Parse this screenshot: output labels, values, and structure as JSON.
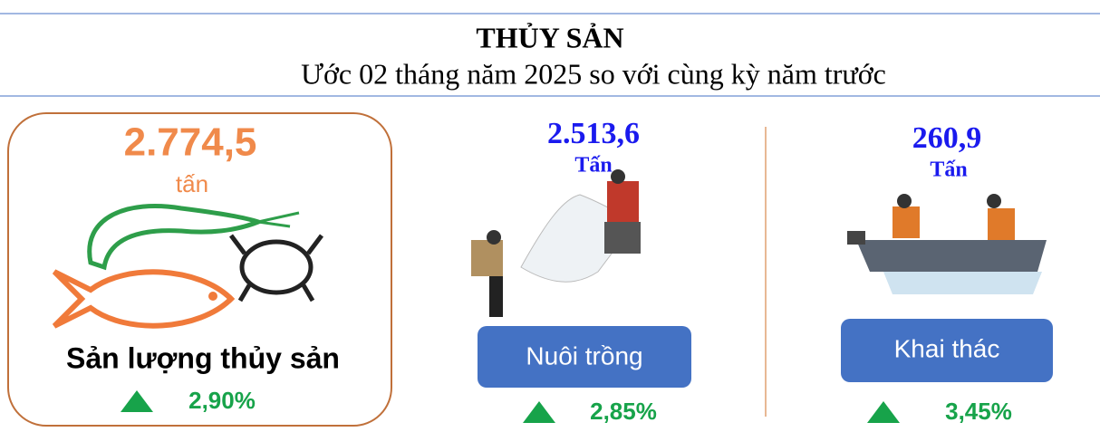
{
  "header": {
    "title": "THỦY SẢN",
    "subtitle": "Ước 02 tháng năm 2025 so với cùng kỳ năm trước"
  },
  "cards": [
    {
      "value": "2.774,5",
      "unit": "tấn",
      "label": "Sản lượng thủy sản",
      "change": "2,90%"
    },
    {
      "value": "2.513,6",
      "unit": "Tấn",
      "label": "Nuôi trồng",
      "change": "2,85%"
    },
    {
      "value": "260,9",
      "unit": "Tấn",
      "label": "Khai thác",
      "change": "3,45%"
    }
  ]
}
